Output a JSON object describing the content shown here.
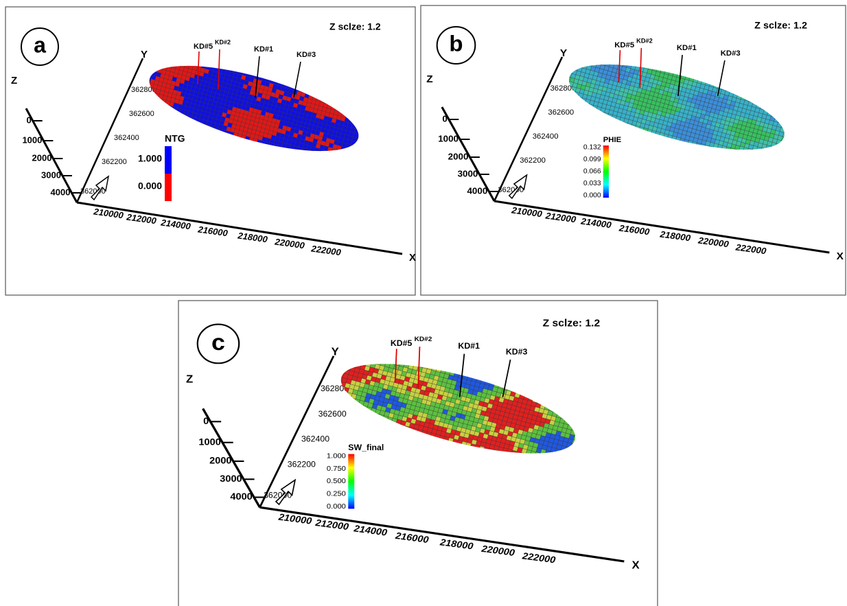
{
  "panels": [
    {
      "label": "a",
      "scale_note": "Z sclze: 1.2",
      "axes": {
        "x": "X",
        "y": "Y",
        "z": "Z"
      },
      "x_ticks": [
        "210000",
        "212000",
        "214000",
        "216000",
        "218000",
        "220000",
        "222000"
      ],
      "y_ticks": [
        "362000",
        "362200",
        "362400",
        "362600",
        "362800"
      ],
      "z_ticks": [
        "0",
        "1000",
        "2000",
        "3000",
        "4000"
      ],
      "wells": [
        {
          "name": "KD#5",
          "color": "#e00000"
        },
        {
          "name": "KD#2",
          "color": "#e00000"
        },
        {
          "name": "KD#1",
          "color": "#000000"
        },
        {
          "name": "KD#3",
          "color": "#000000"
        }
      ],
      "legend": {
        "title": "NTG",
        "labels": [
          "1.000",
          "0.000"
        ],
        "colors": [
          "#0000ff",
          "#ff0000"
        ],
        "gradient": false
      }
    },
    {
      "label": "b",
      "scale_note": "Z sclze: 1.2",
      "axes": {
        "x": "X",
        "y": "Y",
        "z": "Z"
      },
      "x_ticks": [
        "210000",
        "212000",
        "214000",
        "216000",
        "218000",
        "220000",
        "222000"
      ],
      "y_ticks": [
        "362000",
        "362200",
        "362400",
        "362600",
        "362800"
      ],
      "z_ticks": [
        "0",
        "1000",
        "2000",
        "3000",
        "4000"
      ],
      "wells": [
        {
          "name": "KD#5",
          "color": "#e00000"
        },
        {
          "name": "KD#2",
          "color": "#e00000"
        },
        {
          "name": "KD#1",
          "color": "#000000"
        },
        {
          "name": "KD#3",
          "color": "#000000"
        }
      ],
      "legend": {
        "title": "PHIE",
        "labels": [
          "0.132",
          "0.099",
          "0.066",
          "0.033",
          "0.000"
        ],
        "colors": [
          "#ff0000",
          "#ffff00",
          "#00ff00",
          "#00ffff",
          "#0000ff"
        ],
        "gradient": true
      }
    },
    {
      "label": "c",
      "scale_note": "Z sclze: 1.2",
      "axes": {
        "x": "X",
        "y": "Y",
        "z": "Z"
      },
      "x_ticks": [
        "210000",
        "212000",
        "214000",
        "216000",
        "218000",
        "220000",
        "222000"
      ],
      "y_ticks": [
        "362000",
        "362200",
        "362400",
        "362600",
        "362800"
      ],
      "z_ticks": [
        "0",
        "1000",
        "2000",
        "3000",
        "4000"
      ],
      "wells": [
        {
          "name": "KD#5",
          "color": "#e00000"
        },
        {
          "name": "KD#2",
          "color": "#e00000"
        },
        {
          "name": "KD#1",
          "color": "#000000"
        },
        {
          "name": "KD#3",
          "color": "#000000"
        }
      ],
      "legend": {
        "title": "SW_final",
        "labels": [
          "1.000",
          "0.750",
          "0.500",
          "0.250",
          "0.000"
        ],
        "colors": [
          "#ff0000",
          "#ffff00",
          "#00ff00",
          "#00ffff",
          "#0000ff"
        ],
        "gradient": true
      }
    }
  ]
}
